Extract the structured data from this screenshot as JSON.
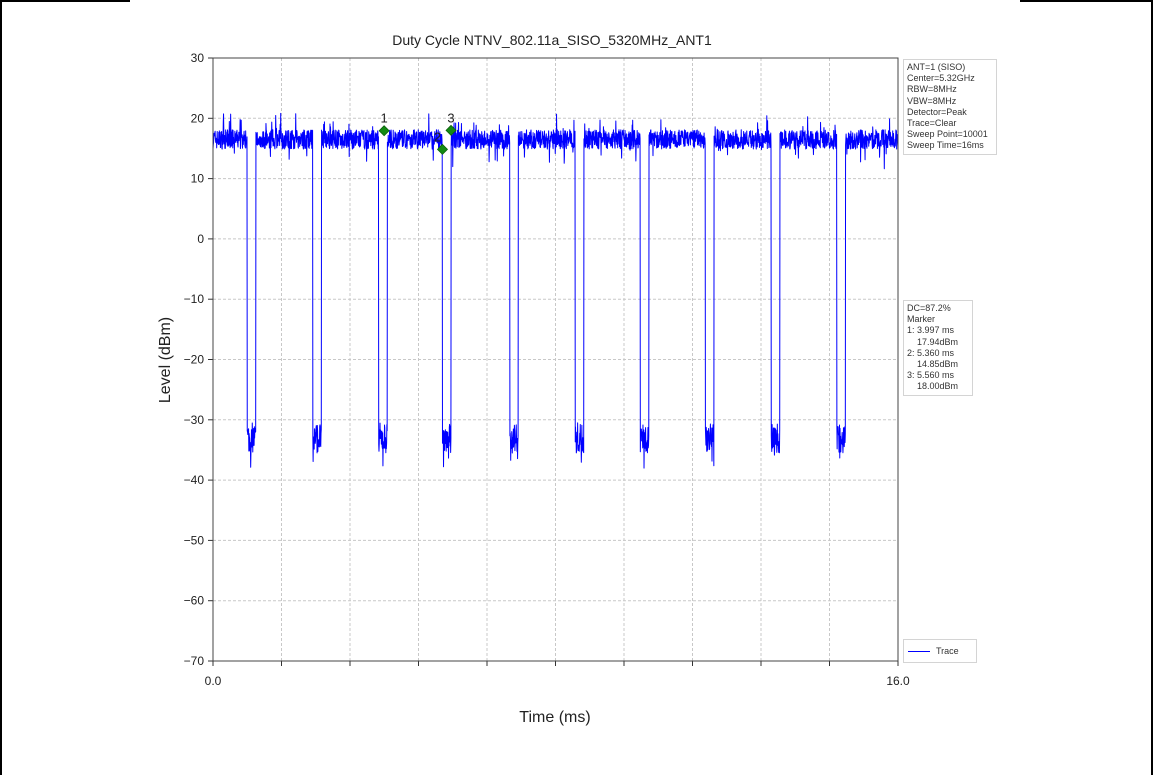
{
  "chart_data": {
    "type": "line",
    "title": "Duty Cycle NTNV_802.11a_SISO_5320MHz_ANT1",
    "xlabel": "Time (ms)",
    "ylabel": "Level (dBm)",
    "xlim": [
      0.0,
      16.0
    ],
    "ylim": [
      -70,
      30
    ],
    "x_tick_labels": [
      "0.0",
      "16.0"
    ],
    "y_ticks": [
      30,
      20,
      10,
      0,
      -10,
      -20,
      -30,
      -40,
      -50,
      -60,
      -70
    ],
    "y_tick_labels": [
      "30",
      "20",
      "10",
      "0",
      "−10",
      "−20",
      "−30",
      "−40",
      "−50",
      "−60",
      "−70"
    ],
    "grid": true,
    "legend_position": "bottom-right",
    "series": [
      {
        "name": "Trace",
        "color": "#0000ff",
        "on_level_dbm": 16.5,
        "off_level_dbm": -33,
        "off_intervals_ms": [
          [
            0.8,
            1.0
          ],
          [
            2.33,
            2.53
          ],
          [
            3.87,
            4.07
          ],
          [
            5.36,
            5.56
          ],
          [
            6.93,
            7.13
          ],
          [
            8.46,
            8.66
          ],
          [
            9.98,
            10.18
          ],
          [
            11.5,
            11.7
          ],
          [
            13.04,
            13.24
          ],
          [
            14.57,
            14.77
          ]
        ]
      }
    ],
    "markers": [
      {
        "label": "1",
        "x_ms": 3.997,
        "y_dbm": 17.94
      },
      {
        "label": "2",
        "x_ms": 5.36,
        "y_dbm": 14.85
      },
      {
        "label": "3",
        "x_ms": 5.56,
        "y_dbm": 18.0
      }
    ]
  },
  "settings_box": [
    "ANT=1 (SISO)",
    "Center=5.32GHz",
    "RBW=8MHz",
    "VBW=8MHz",
    "Detector=Peak",
    "Trace=Clear",
    "Sweep Point=10001",
    "Sweep Time=16ms"
  ],
  "marker_box": [
    "DC=87.2%",
    "Marker",
    "1: 3.997 ms",
    "    17.94dBm",
    "2: 5.360 ms",
    "    14.85dBm",
    "3: 5.560 ms",
    "    18.00dBm"
  ],
  "legend": {
    "label": "Trace"
  },
  "colors": {
    "trace": "#0000ff",
    "marker": "#138a13",
    "grid": "#c8c8c8"
  }
}
